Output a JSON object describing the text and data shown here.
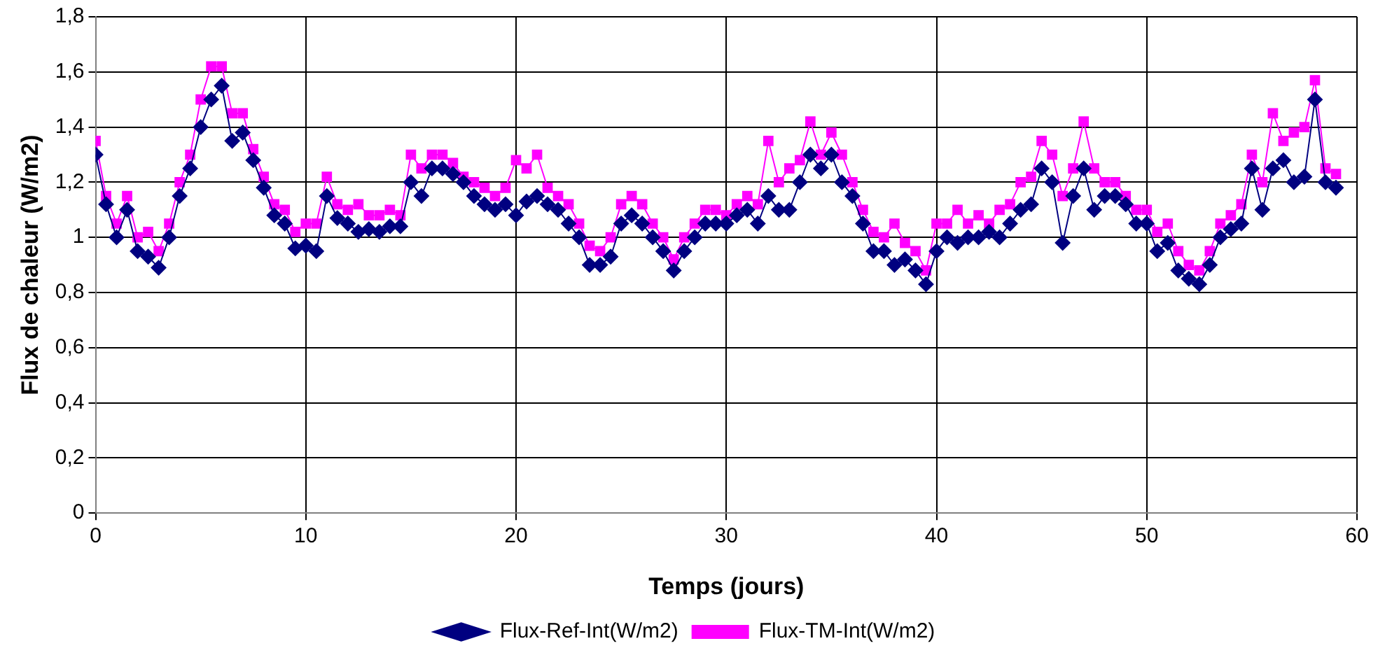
{
  "chart_data": {
    "type": "line",
    "xlabel": "Temps (jours)",
    "ylabel": "Flux de chaleur (W/m2)",
    "x": [
      0,
      0.5,
      1,
      1.5,
      2,
      2.5,
      3,
      3.5,
      4,
      4.5,
      5,
      5.5,
      6,
      6.5,
      7,
      7.5,
      8,
      8.5,
      9,
      9.5,
      10,
      10.5,
      11,
      11.5,
      12,
      12.5,
      13,
      13.5,
      14,
      14.5,
      15,
      15.5,
      16,
      16.5,
      17,
      17.5,
      18,
      18.5,
      19,
      19.5,
      20,
      20.5,
      21,
      21.5,
      22,
      22.5,
      23,
      23.5,
      24,
      24.5,
      25,
      25.5,
      26,
      26.5,
      27,
      27.5,
      28,
      28.5,
      29,
      29.5,
      30,
      30.5,
      31,
      31.5,
      32,
      32.5,
      33,
      33.5,
      34,
      34.5,
      35,
      35.5,
      36,
      36.5,
      37,
      37.5,
      38,
      38.5,
      39,
      39.5,
      40,
      40.5,
      41,
      41.5,
      42,
      42.5,
      43,
      43.5,
      44,
      44.5,
      45,
      45.5,
      46,
      46.5,
      47,
      47.5,
      48,
      48.5,
      49,
      49.5,
      50,
      50.5,
      51,
      51.5,
      52,
      52.5,
      53,
      53.5,
      54,
      54.5,
      55,
      55.5,
      56,
      56.5,
      57,
      57.5,
      58,
      58.5,
      59
    ],
    "series": [
      {
        "name": "Flux-Ref-Int(W/m2)",
        "color": "#000080",
        "marker": "diamond",
        "values": [
          1.3,
          1.12,
          1.0,
          1.1,
          0.95,
          0.93,
          0.89,
          1.0,
          1.15,
          1.25,
          1.4,
          1.5,
          1.55,
          1.35,
          1.38,
          1.28,
          1.18,
          1.08,
          1.05,
          0.96,
          0.97,
          0.95,
          1.15,
          1.07,
          1.05,
          1.02,
          1.03,
          1.02,
          1.04,
          1.04,
          1.2,
          1.15,
          1.25,
          1.25,
          1.23,
          1.2,
          1.15,
          1.12,
          1.1,
          1.12,
          1.08,
          1.13,
          1.15,
          1.12,
          1.1,
          1.05,
          1.0,
          0.9,
          0.9,
          0.93,
          1.05,
          1.08,
          1.05,
          1.0,
          0.95,
          0.88,
          0.95,
          1.0,
          1.05,
          1.05,
          1.05,
          1.08,
          1.1,
          1.05,
          1.15,
          1.1,
          1.1,
          1.2,
          1.3,
          1.25,
          1.3,
          1.2,
          1.15,
          1.05,
          0.95,
          0.95,
          0.9,
          0.92,
          0.88,
          0.83,
          0.95,
          1.0,
          0.98,
          1.0,
          1.0,
          1.02,
          1.0,
          1.05,
          1.1,
          1.12,
          1.25,
          1.2,
          0.98,
          1.15,
          1.25,
          1.1,
          1.15,
          1.15,
          1.12,
          1.05,
          1.05,
          0.95,
          0.98,
          0.88,
          0.85,
          0.83,
          0.9,
          1.0,
          1.03,
          1.05,
          1.25,
          1.1,
          1.25,
          1.28,
          1.2,
          1.22,
          1.5,
          1.2,
          1.18
        ]
      },
      {
        "name": "Flux-TM-Int(W/m2)",
        "color": "#ff00ff",
        "marker": "square",
        "values": [
          1.35,
          1.15,
          1.05,
          1.15,
          1.0,
          1.02,
          0.95,
          1.05,
          1.2,
          1.3,
          1.5,
          1.62,
          1.62,
          1.45,
          1.45,
          1.32,
          1.22,
          1.12,
          1.1,
          1.02,
          1.05,
          1.05,
          1.22,
          1.12,
          1.1,
          1.12,
          1.08,
          1.08,
          1.1,
          1.08,
          1.3,
          1.25,
          1.3,
          1.3,
          1.27,
          1.22,
          1.2,
          1.18,
          1.15,
          1.18,
          1.28,
          1.25,
          1.3,
          1.18,
          1.15,
          1.12,
          1.05,
          0.97,
          0.95,
          1.0,
          1.12,
          1.15,
          1.12,
          1.05,
          1.0,
          0.92,
          1.0,
          1.05,
          1.1,
          1.1,
          1.08,
          1.12,
          1.15,
          1.12,
          1.35,
          1.2,
          1.25,
          1.28,
          1.42,
          1.3,
          1.38,
          1.3,
          1.2,
          1.1,
          1.02,
          1.0,
          1.05,
          0.98,
          0.95,
          0.88,
          1.05,
          1.05,
          1.1,
          1.05,
          1.08,
          1.05,
          1.1,
          1.12,
          1.2,
          1.22,
          1.35,
          1.3,
          1.15,
          1.25,
          1.42,
          1.25,
          1.2,
          1.2,
          1.15,
          1.1,
          1.1,
          1.02,
          1.05,
          0.95,
          0.9,
          0.88,
          0.95,
          1.05,
          1.08,
          1.12,
          1.3,
          1.2,
          1.45,
          1.35,
          1.38,
          1.4,
          1.57,
          1.25,
          1.23
        ]
      }
    ],
    "xlim": [
      0,
      60
    ],
    "xticks": [
      0,
      10,
      20,
      30,
      40,
      50,
      60
    ],
    "ylim": [
      0,
      1.8
    ],
    "yticks": [
      0,
      {
        "value": 0.2,
        "label": "0,2"
      },
      {
        "value": 0.4,
        "label": "0,4"
      },
      {
        "value": 0.6,
        "label": "0,6"
      },
      {
        "value": 0.8,
        "label": "0,8"
      },
      1,
      {
        "value": 1.2,
        "label": "1,2"
      },
      {
        "value": 1.4,
        "label": "1,4"
      },
      {
        "value": 1.6,
        "label": "1,6"
      },
      {
        "value": 1.8,
        "label": "1,8"
      }
    ],
    "grid": true,
    "legend": "bottom",
    "line_style": "solid"
  }
}
